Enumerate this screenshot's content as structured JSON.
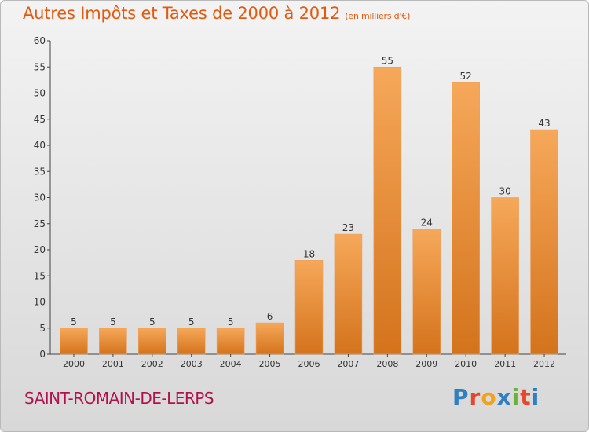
{
  "header": {
    "title": "Autres Impôts et Taxes de 2000 à 2012",
    "subtitle": "(en milliers d'€)"
  },
  "footer": {
    "commune": "SAINT-ROMAIN-DE-LERPS",
    "logo_text": "Proxiti"
  },
  "colors": {
    "bar_light": "#f6a85a",
    "bar_dark": "#d4731c",
    "title": "#e05a10",
    "commune": "#b2124b"
  },
  "chart_data": {
    "type": "bar",
    "title": "Autres Impôts et Taxes de 2000 à 2012",
    "subtitle": "(en milliers d'€)",
    "categories": [
      "2000",
      "2001",
      "2002",
      "2003",
      "2004",
      "2005",
      "2006",
      "2007",
      "2008",
      "2009",
      "2010",
      "2011",
      "2012"
    ],
    "values": [
      5,
      5,
      5,
      5,
      5,
      6,
      18,
      23,
      55,
      24,
      52,
      30,
      43
    ],
    "ylim": [
      0,
      60
    ],
    "yticks": [
      0,
      5,
      10,
      15,
      20,
      25,
      30,
      35,
      40,
      45,
      50,
      55,
      60
    ],
    "xlabel": "",
    "ylabel": "",
    "grid": false,
    "data_labels": true
  }
}
